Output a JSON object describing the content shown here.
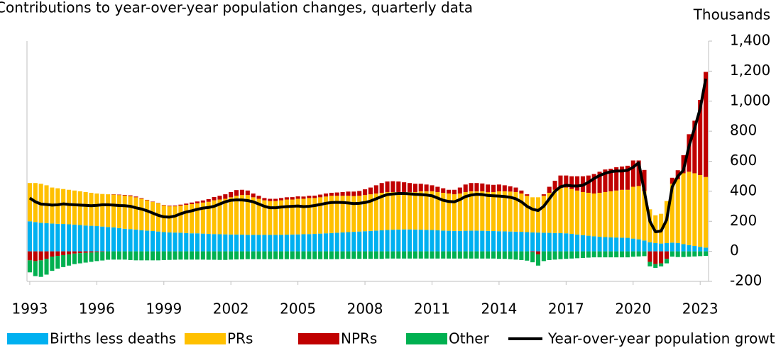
{
  "chart_data": {
    "type": "bar",
    "stacked": true,
    "title": "Contributions to year-over-year population changes, quarterly data",
    "y_label": "Thousands",
    "categories": [
      "1993",
      null,
      null,
      null,
      null,
      null,
      null,
      null,
      null,
      null,
      null,
      null,
      "1996",
      null,
      null,
      null,
      null,
      null,
      null,
      null,
      null,
      null,
      null,
      null,
      "1999",
      null,
      null,
      null,
      null,
      null,
      null,
      null,
      null,
      null,
      null,
      null,
      "2002",
      null,
      null,
      null,
      null,
      null,
      null,
      null,
      null,
      null,
      null,
      null,
      "2005",
      null,
      null,
      null,
      null,
      null,
      null,
      null,
      null,
      null,
      null,
      null,
      "2008",
      null,
      null,
      null,
      null,
      null,
      null,
      null,
      null,
      null,
      null,
      null,
      "2011",
      null,
      null,
      null,
      null,
      null,
      null,
      null,
      null,
      null,
      null,
      null,
      "2014",
      null,
      null,
      null,
      null,
      null,
      null,
      null,
      null,
      null,
      null,
      null,
      "2017",
      null,
      null,
      null,
      null,
      null,
      null,
      null,
      null,
      null,
      null,
      null,
      "2020",
      null,
      null,
      null,
      null,
      null,
      null,
      null,
      null,
      null,
      null,
      null,
      "2023",
      null
    ],
    "ylim": [
      -200,
      1400
    ],
    "yticks": [
      -200,
      0,
      200,
      400,
      600,
      800,
      {
        "value": 1000,
        "label": "1,000"
      },
      {
        "value": 1200,
        "label": "1,200"
      },
      {
        "value": 1400,
        "label": "1,400"
      }
    ],
    "legend": "bottom",
    "series": [
      {
        "name": "Births less deaths",
        "color": "#00b0f0",
        "values": [
          200,
          195,
          190,
          188,
          185,
          183,
          182,
          180,
          178,
          175,
          172,
          170,
          168,
          165,
          162,
          160,
          155,
          150,
          148,
          145,
          140,
          138,
          135,
          132,
          128,
          126,
          125,
          124,
          122,
          120,
          120,
          118,
          116,
          115,
          114,
          113,
          112,
          112,
          111,
          110,
          110,
          110,
          110,
          110,
          110,
          110,
          111,
          112,
          113,
          114,
          115,
          116,
          118,
          120,
          122,
          124,
          126,
          128,
          130,
          132,
          134,
          136,
          138,
          140,
          142,
          144,
          145,
          146,
          146,
          145,
          144,
          143,
          142,
          140,
          138,
          137,
          136,
          136,
          137,
          138,
          138,
          137,
          136,
          135,
          134,
          133,
          132,
          131,
          130,
          128,
          126,
          125,
          124,
          123,
          122,
          121,
          120,
          116,
          112,
          108,
          104,
          100,
          97,
          95,
          93,
          92,
          91,
          90,
          85,
          80,
          72,
          60,
          55,
          52,
          55,
          58,
          55,
          48,
          42,
          36,
          30,
          25
        ]
      },
      {
        "name": "PRs",
        "color": "#ffc000",
        "values": [
          255,
          260,
          260,
          252,
          240,
          237,
          233,
          230,
          227,
          225,
          223,
          220,
          217,
          217,
          218,
          218,
          220,
          222,
          220,
          215,
          210,
          202,
          195,
          188,
          177,
          174,
          175,
          181,
          188,
          195,
          200,
          207,
          214,
          225,
          231,
          237,
          248,
          258,
          264,
          265,
          250,
          240,
          230,
          225,
          225,
          230,
          234,
          233,
          237,
          236,
          240,
          239,
          242,
          245,
          248,
          246,
          244,
          242,
          238,
          238,
          241,
          244,
          247,
          250,
          253,
          251,
          250,
          249,
          249,
          250,
          256,
          257,
          258,
          255,
          252,
          248,
          244,
          249,
          258,
          262,
          262,
          263,
          259,
          260,
          266,
          267,
          266,
          264,
          255,
          242,
          234,
          235,
          246,
          267,
          288,
          309,
          305,
          299,
          293,
          287,
          286,
          285,
          293,
          300,
          307,
          313,
          319,
          320,
          345,
          355,
          330,
          220,
          185,
          198,
          280,
          392,
          425,
          472,
          488,
          484,
          478,
          470
        ]
      },
      {
        "name": "NPRs",
        "color": "#c00000",
        "values": [
          -60,
          -65,
          -60,
          -50,
          -35,
          -30,
          -25,
          -20,
          -15,
          -12,
          -10,
          -8,
          -5,
          -3,
          0,
          2,
          3,
          4,
          5,
          5,
          4,
          3,
          2,
          2,
          3,
          4,
          5,
          6,
          8,
          10,
          12,
          14,
          18,
          22,
          25,
          30,
          35,
          38,
          35,
          30,
          25,
          20,
          15,
          15,
          15,
          15,
          15,
          16,
          16,
          15,
          15,
          16,
          18,
          20,
          20,
          22,
          25,
          28,
          30,
          32,
          38,
          45,
          55,
          65,
          70,
          72,
          70,
          65,
          60,
          55,
          50,
          45,
          40,
          35,
          30,
          25,
          30,
          40,
          50,
          55,
          55,
          52,
          50,
          48,
          45,
          40,
          35,
          30,
          20,
          10,
          -5,
          -20,
          10,
          40,
          60,
          75,
          80,
          85,
          95,
          105,
          115,
          130,
          140,
          150,
          150,
          155,
          155,
          160,
          175,
          170,
          140,
          -70,
          -85,
          -80,
          -50,
          40,
          60,
          120,
          250,
          350,
          500,
          700
        ]
      },
      {
        "name": "Other",
        "color": "#00b050",
        "values": [
          -80,
          -100,
          -110,
          -105,
          -95,
          -85,
          -80,
          -75,
          -70,
          -68,
          -65,
          -62,
          -60,
          -58,
          -56,
          -55,
          -55,
          -55,
          -58,
          -60,
          -60,
          -60,
          -60,
          -60,
          -58,
          -57,
          -56,
          -55,
          -55,
          -55,
          -55,
          -55,
          -56,
          -56,
          -57,
          -57,
          -55,
          -54,
          -53,
          -52,
          -52,
          -52,
          -52,
          -52,
          -52,
          -52,
          -52,
          -52,
          -52,
          -52,
          -52,
          -52,
          -52,
          -52,
          -52,
          -52,
          -50,
          -50,
          -50,
          -50,
          -50,
          -50,
          -50,
          -50,
          -48,
          -48,
          -48,
          -48,
          -48,
          -48,
          -48,
          -48,
          -48,
          -48,
          -48,
          -48,
          -48,
          -48,
          -48,
          -48,
          -48,
          -48,
          -48,
          -48,
          -50,
          -50,
          -52,
          -55,
          -58,
          -62,
          -68,
          -75,
          -65,
          -58,
          -55,
          -52,
          -50,
          -48,
          -46,
          -44,
          -42,
          -40,
          -40,
          -40,
          -40,
          -40,
          -40,
          -40,
          -36,
          -34,
          -32,
          -30,
          -25,
          -20,
          -30,
          -35,
          -38,
          -38,
          -36,
          -34,
          -32,
          -30
        ]
      },
      {
        "name": "Year-over-year population growth",
        "type": "line",
        "color": "#000000",
        "values": [
          355,
          330,
          315,
          312,
          308,
          310,
          316,
          312,
          310,
          308,
          306,
          304,
          306,
          310,
          310,
          308,
          305,
          304,
          300,
          290,
          282,
          270,
          255,
          240,
          230,
          228,
          235,
          250,
          262,
          270,
          280,
          288,
          292,
          300,
          315,
          330,
          340,
          343,
          342,
          338,
          330,
          315,
          300,
          290,
          290,
          295,
          298,
          300,
          302,
          298,
          300,
          305,
          312,
          320,
          325,
          326,
          325,
          322,
          318,
          320,
          325,
          335,
          350,
          365,
          378,
          382,
          385,
          385,
          383,
          380,
          378,
          375,
          370,
          355,
          340,
          332,
          330,
          345,
          365,
          375,
          380,
          378,
          372,
          370,
          368,
          365,
          360,
          350,
          330,
          300,
          280,
          272,
          300,
          350,
          400,
          430,
          440,
          436,
          435,
          440,
          460,
          485,
          505,
          520,
          530,
          535,
          535,
          540,
          560,
          590,
          400,
          200,
          130,
          135,
          210,
          430,
          500,
          540,
          700,
          820,
          950,
          1150
        ]
      }
    ]
  }
}
